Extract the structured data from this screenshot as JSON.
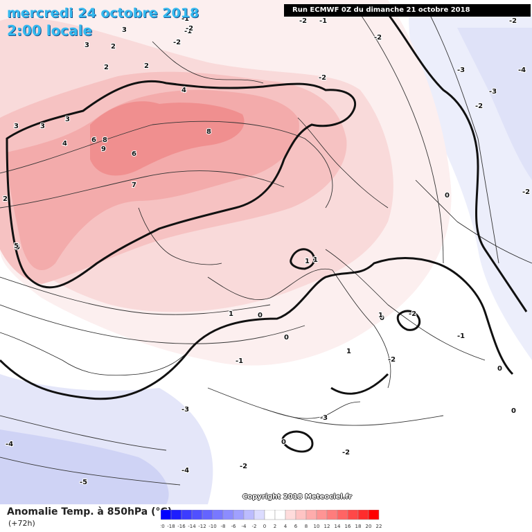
{
  "header": {
    "date": "mercredi 24 octobre 2018",
    "time": "2:00 locale",
    "run": "Run ECMWF 0Z du dimanche 21 octobre 2018"
  },
  "footer": {
    "parameter": "Anomalie Temp. à 850hPa (°C)",
    "lead": "(+72h)",
    "copyright": "Copyright 2018 Meteociel.fr"
  },
  "legend": {
    "ticks": [
      "-20",
      "-18",
      "-16",
      "-14",
      "-12",
      "-10",
      "-8",
      "-6",
      "-4",
      "-2",
      "0",
      "2",
      "4",
      "6",
      "8",
      "10",
      "12",
      "14",
      "16",
      "18",
      "20",
      "22"
    ],
    "colors": [
      "#0000ff",
      "#1e1eff",
      "#3c3cff",
      "#5050ff",
      "#6464ff",
      "#7878ff",
      "#8c8cff",
      "#a0a0ff",
      "#bcbcff",
      "#dcdcff",
      "#ffffff",
      "#ffffff",
      "#ffdcdc",
      "#ffc4c4",
      "#ffacac",
      "#ff9494",
      "#ff7c7c",
      "#ff6464",
      "#ff4848",
      "#ff2c2c",
      "#ff0000"
    ]
  },
  "map_labels": [
    "3",
    "-1",
    "-2",
    "-1",
    "-2",
    "2",
    "2",
    "3",
    "3",
    "3",
    "3",
    "2",
    "5",
    "4",
    "-2",
    "-2",
    "-3",
    "-3",
    "-4",
    "-2",
    "8",
    "6",
    "8",
    "9",
    "4",
    "7",
    "5",
    "6",
    "2",
    "0",
    "1",
    "-1",
    "-2",
    "0",
    "0",
    "0",
    "1",
    "1",
    "0",
    "-1",
    "-2",
    "-2",
    "-3",
    "-2",
    "-3",
    "-4",
    "-5",
    "-4",
    "-2",
    "-2",
    "-2",
    "-1",
    "0",
    "1",
    "1",
    "0",
    "-2"
  ]
}
